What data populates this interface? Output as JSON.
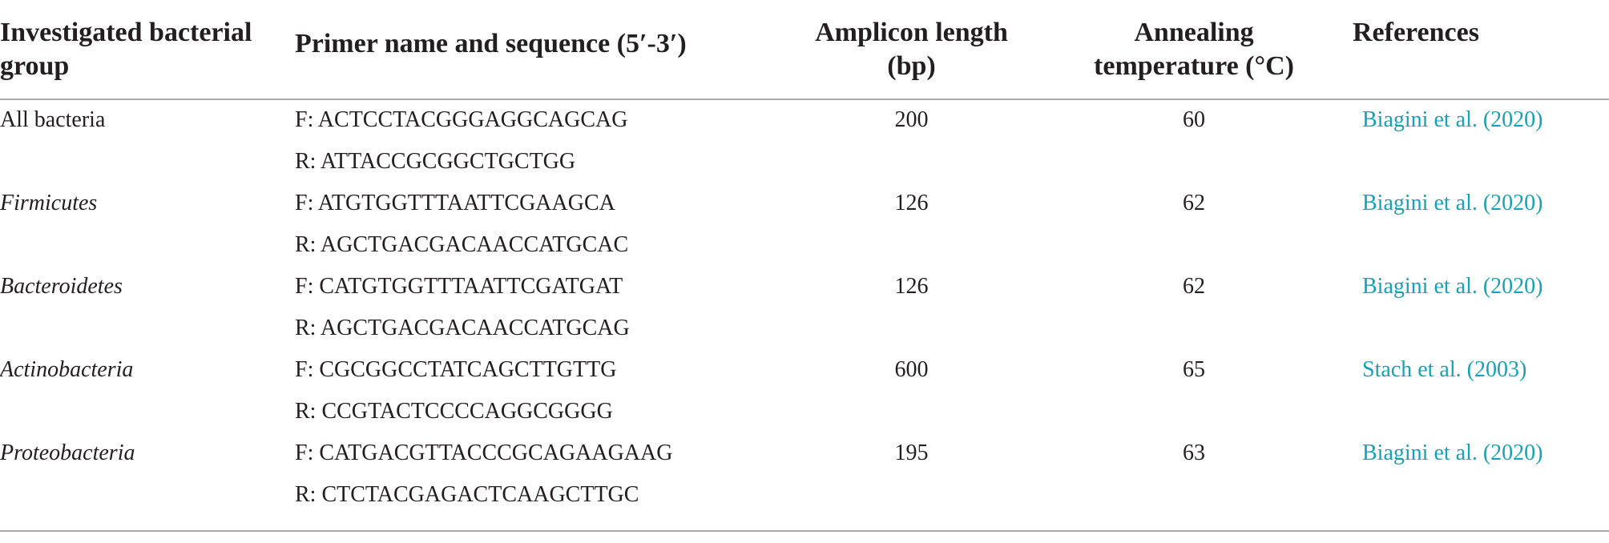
{
  "table": {
    "headers": {
      "group_line1": "Investigated bacterial",
      "group_line2": "group",
      "primer": "Primer name and sequence (5′-3′)",
      "amplicon_line1": "Amplicon length",
      "amplicon_line2": "(bp)",
      "annealing_line1": "Annealing",
      "annealing_line2": "temperature (°C)",
      "references": "References"
    },
    "rows": [
      {
        "group": "All bacteria",
        "italic": false,
        "forward": "F: ACTCCTACGGGAGGCAGCAG",
        "reverse": "R: ATTACCGCGGCTGCTGG",
        "amplicon": "200",
        "annealing": "60",
        "reference": "Biagini et al. (2020)"
      },
      {
        "group": "Firmicutes",
        "italic": true,
        "forward": "F: ATGTGGTTTAATTCGAAGCA",
        "reverse": "R: AGCTGACGACAACCATGCAC",
        "amplicon": "126",
        "annealing": "62",
        "reference": "Biagini et al. (2020)"
      },
      {
        "group": "Bacteroidetes",
        "italic": true,
        "forward": "F: CATGTGGTTTAATTCGATGAT",
        "reverse": "R: AGCTGACGACAACCATGCAG",
        "amplicon": "126",
        "annealing": "62",
        "reference": "Biagini et al. (2020)"
      },
      {
        "group": "Actinobacteria",
        "italic": true,
        "forward": "F: CGCGGCCTATCAGCTTGTTG",
        "reverse": "R: CCGTACTCCCCAGGCGGGG",
        "amplicon": "600",
        "annealing": "65",
        "reference": "Stach et al. (2003)"
      },
      {
        "group": "Proteobacteria",
        "italic": true,
        "forward": "F: CATGACGTTACCCGCAGAAGAAG",
        "reverse": "R: CTCTACGAGACTCAAGCTTGC",
        "amplicon": "195",
        "annealing": "63",
        "reference": "Biagini et al. (2020)"
      }
    ],
    "colors": {
      "text": "#231f20",
      "link": "#17a2b2",
      "rule": "#a7a9ac"
    }
  }
}
